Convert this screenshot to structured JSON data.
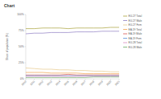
{
  "chart_data": {
    "type": "line",
    "title": "Chart",
    "y_label": "Share of population (%)",
    "categories": [
      "2010",
      "2011",
      "2012",
      "2013",
      "2014",
      "2015",
      "2016",
      "2017",
      "2018",
      "2019",
      "2020",
      "2021"
    ],
    "ylim": [
      0,
      100
    ],
    "yticks": [
      {
        "value": 0,
        "label": "0%"
      },
      {
        "value": 25,
        "label": "25%"
      },
      {
        "value": 50,
        "label": "50%"
      },
      {
        "value": 75,
        "label": "75%"
      },
      {
        "value": 100,
        "label": "100%"
      }
    ],
    "grid": false,
    "legend": "right",
    "series": [
      {
        "name": "EU-27 Total",
        "color": "#a9a23a",
        "values": [
          78,
          78,
          79,
          79,
          79,
          78,
          79,
          79,
          79,
          79,
          80,
          80
        ]
      },
      {
        "name": "EU-27 Male",
        "color": "#8e7cc3",
        "values": [
          70,
          71,
          71,
          72,
          72,
          72,
          73,
          73,
          73,
          74,
          74,
          74
        ]
      },
      {
        "name": "EU-27 Fem",
        "color": "#e6c88a",
        "values": [
          17,
          16,
          15,
          15,
          14,
          14,
          13,
          13,
          12,
          12,
          11,
          11
        ]
      },
      {
        "name": "EA-19 Total",
        "color": "#f0a04b",
        "values": [
          10,
          10,
          10,
          9,
          9,
          9,
          9,
          8,
          8,
          8,
          8,
          8
        ]
      },
      {
        "name": "EA-19 Male",
        "color": "#d9534f",
        "values": [
          6,
          6,
          6,
          6,
          6,
          7,
          6,
          6,
          6,
          6,
          6,
          6
        ]
      },
      {
        "name": "EA-19 Fem",
        "color": "#5b8fd6",
        "values": [
          5,
          5,
          5,
          5,
          5,
          5,
          5,
          5,
          5,
          5,
          5,
          5
        ]
      },
      {
        "name": "EU-28 Total",
        "color": "#d98cc0",
        "values": [
          4,
          4,
          4,
          4,
          4,
          4,
          4,
          4,
          4,
          4,
          4,
          4
        ]
      },
      {
        "name": "EU-28 Male",
        "color": "#6aaa64",
        "values": [
          2,
          2,
          2,
          2,
          2,
          2,
          2,
          2,
          3,
          3,
          3,
          3
        ]
      }
    ]
  }
}
